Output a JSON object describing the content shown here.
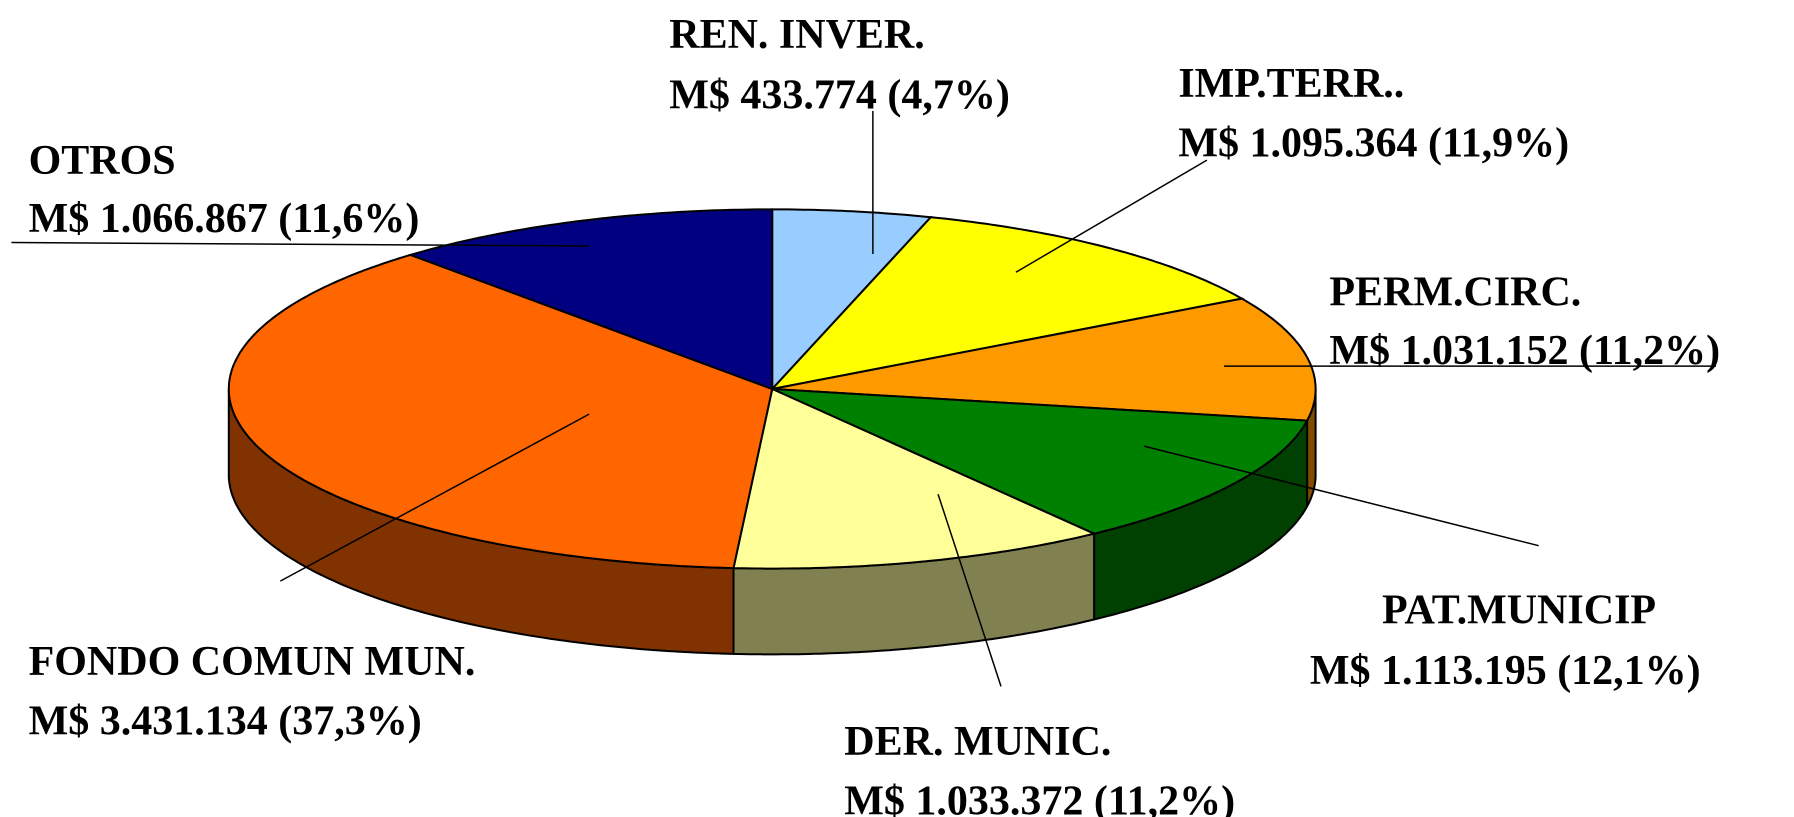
{
  "chart_data": {
    "type": "pie",
    "categories": [
      "REN. INVER.",
      "IMP.TERR..",
      "PERM.CIRC.",
      "PAT.MUNICIP",
      "DER.  MUNIC.",
      "FONDO COMUN MUN.",
      "OTROS"
    ],
    "values": [
      433774,
      1095364,
      1031152,
      1113195,
      1033372,
      3431134,
      1066867
    ],
    "value_labels": [
      "M$  433.774 (4,7%)",
      "M$  1.095.364 (11,9%)",
      "M$  1.031.152 (11,2%)",
      "M$  1.113.195  (12,1%)",
      "M$ 1.033.372 (11,2%)",
      "M$ 3.431.134 (37,3%)",
      "M$  1.066.867 (11,6%)"
    ],
    "colors": [
      "#99ccff",
      "#ffff00",
      "#ff9900",
      "#008000",
      "#ffff99",
      "#ff6600",
      "#000080"
    ],
    "side_colors": [
      "#4c6680",
      "#808000",
      "#804c00",
      "#004000",
      "#808050",
      "#803300",
      "#000040"
    ]
  }
}
